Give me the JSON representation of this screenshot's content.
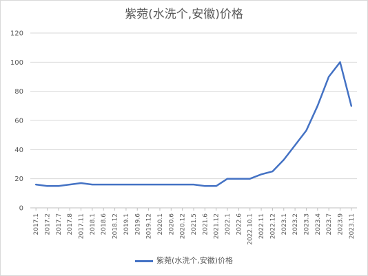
{
  "chart_data": {
    "type": "line",
    "title": "紫菀(水洗个,安徽)价格",
    "xlabel": "",
    "ylabel": "",
    "ylim": [
      0,
      120
    ],
    "yticks": [
      0,
      20,
      40,
      60,
      80,
      100,
      120
    ],
    "grid": true,
    "legend_position": "bottom",
    "categories": [
      "2017.1",
      "2017.2",
      "2017.7",
      "2017.8",
      "2017.11",
      "2018.1",
      "2018.6",
      "2018.12",
      "2019.1",
      "2019.6",
      "2019.12",
      "2020.1",
      "2020.6",
      "2020.12",
      "2021.5",
      "2021.6",
      "2021.12",
      "2022.1",
      "2022.6",
      "2022.10.1",
      "2022.11",
      "2022.12",
      "2023.1",
      "2023.2",
      "2023.3",
      "2023.4",
      "2023.7",
      "2023.9",
      "2023.11"
    ],
    "series": [
      {
        "name": "紫菀(水洗个,安徽)价格",
        "color": "#4472c4",
        "values": [
          16,
          15,
          15,
          16,
          17,
          16,
          16,
          16,
          16,
          16,
          16,
          16,
          16,
          16,
          16,
          15,
          15,
          20,
          20,
          20,
          23,
          25,
          33,
          43,
          53,
          70,
          90,
          100,
          70
        ]
      }
    ]
  }
}
